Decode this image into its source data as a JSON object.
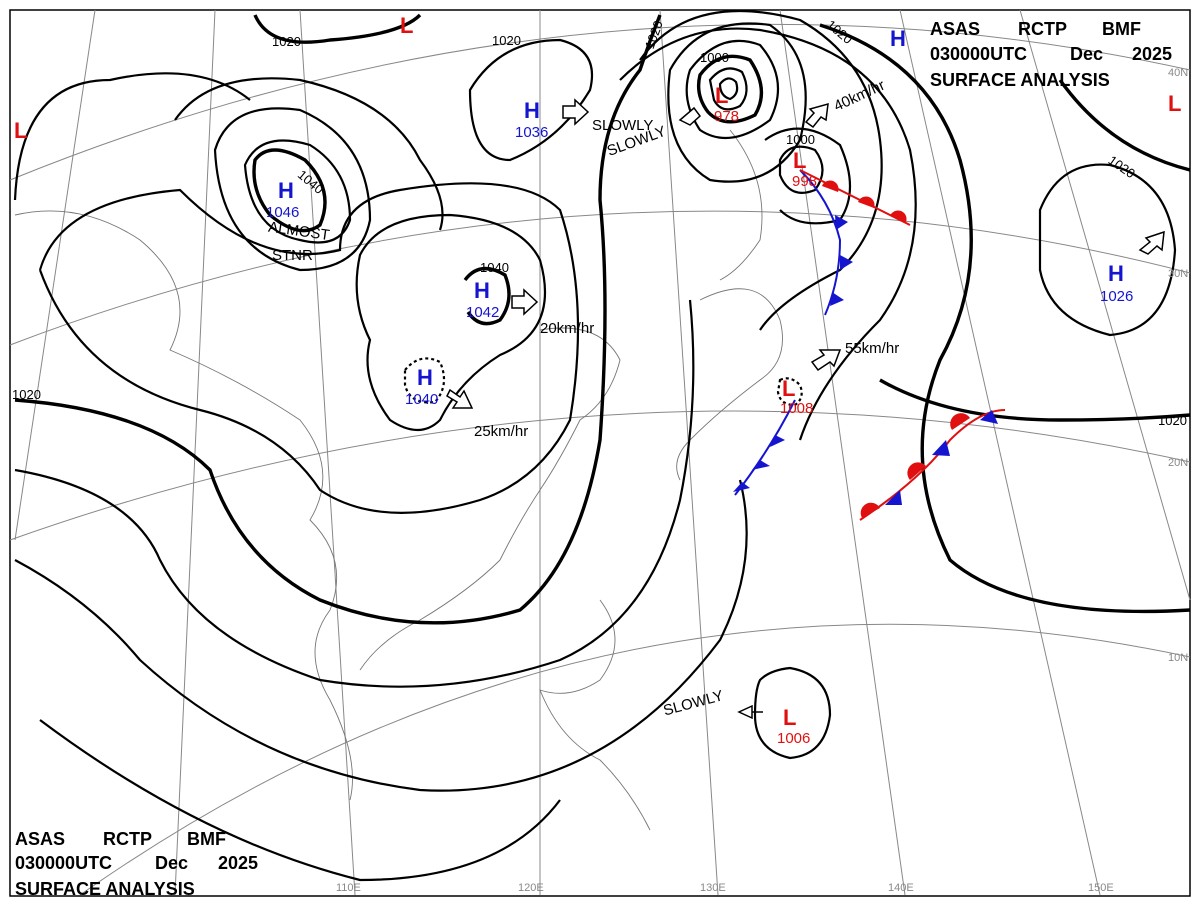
{
  "header_top": {
    "line1": [
      "ASAS",
      "RCTP",
      "BMF"
    ],
    "line2": [
      "030000UTC",
      "Dec",
      "2025"
    ],
    "line3": "SURFACE ANALYSIS"
  },
  "header_bottom": {
    "line1": [
      "ASAS",
      "RCTP",
      "BMF"
    ],
    "line2": [
      "030000UTC",
      "Dec",
      "2025"
    ],
    "line3": "SURFACE ANALYSIS"
  },
  "pressure_centers": [
    {
      "kind": "H",
      "value": "1046"
    },
    {
      "kind": "H",
      "value": "1036"
    },
    {
      "kind": "H",
      "value": "1042"
    },
    {
      "kind": "H",
      "value": "1040"
    },
    {
      "kind": "L",
      "value": "978"
    },
    {
      "kind": "L",
      "value": "998"
    },
    {
      "kind": "L",
      "value": "1008"
    },
    {
      "kind": "L",
      "value": "1006"
    },
    {
      "kind": "H",
      "value": "1026"
    },
    {
      "kind": "L"
    },
    {
      "kind": "L"
    },
    {
      "kind": "L"
    },
    {
      "kind": "H"
    }
  ],
  "isobar_labels": [
    "1020",
    "1020",
    "1020",
    "1020",
    "1040",
    "1040",
    "1000",
    "1000",
    "1020",
    "1020",
    "1020"
  ],
  "motion_labels": [
    "SLOWLY",
    "SLOWLY",
    "20km/hr",
    "25km/hr",
    "55km/hr",
    "40km/hr",
    "SLOWLY"
  ],
  "stationary_note": [
    "ALMOST",
    "STNR"
  ],
  "longitude_labels": [
    "110E",
    "120E",
    "130E",
    "140E",
    "150E"
  ],
  "latitude_labels": [
    "40N",
    "30N",
    "20N",
    "10N"
  ]
}
